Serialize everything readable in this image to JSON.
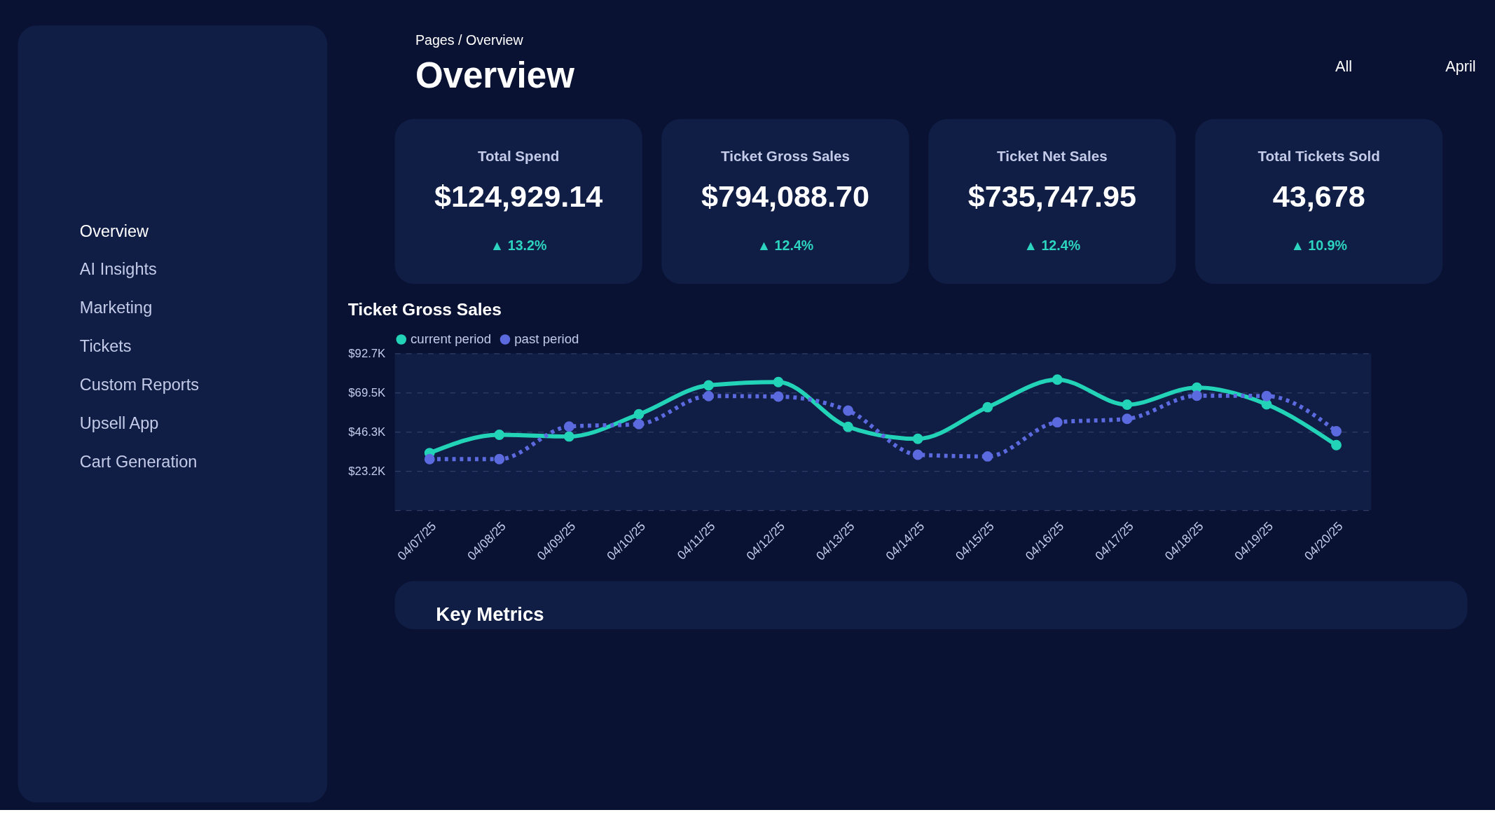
{
  "chart_data": [
    {
      "type": "other",
      "annotations": [
        "Overview",
        "AI Insights",
        "Marketing",
        "Tickets",
        "Custom Reports",
        "Upsell App",
        "Cart Generation"
      ]
    },
    {
      "type": "other",
      "title": "Overview",
      "annotations": [
        "Pages / Overview",
        "All",
        "April"
      ]
    },
    {
      "type": "other",
      "title": "Total Spend",
      "annotations": [
        "$124,929.14",
        "▲ 13.2%"
      ]
    },
    {
      "type": "other",
      "title": "Ticket Gross Sales",
      "annotations": [
        "$794,088.70",
        "▲ 12.4%"
      ]
    },
    {
      "type": "other",
      "title": "Ticket Net Sales",
      "annotations": [
        "$735,747.95",
        "▲ 12.4%"
      ]
    },
    {
      "type": "other",
      "title": "Total Tickets Sold",
      "annotations": [
        "43,678",
        "▲ 10.9%"
      ]
    },
    {
      "type": "line",
      "title": "Ticket Gross Sales",
      "categories": [
        "04/07/25",
        "04/08/25",
        "04/09/25",
        "04/10/25",
        "04/11/25",
        "04/12/25",
        "04/13/25",
        "04/14/25",
        "04/15/25",
        "04/16/25",
        "04/17/25",
        "04/18/25",
        "04/19/25",
        "04/20/25"
      ],
      "series": [
        {
          "name": "current period",
          "color": "#22d3b8",
          "line_style": "solid",
          "values": [
            33800,
            44600,
            43600,
            56700,
            73800,
            75800,
            49300,
            42200,
            60900,
            77200,
            62400,
            72500,
            62600,
            38500
          ]
        },
        {
          "name": "past period",
          "color": "#5c6ae0",
          "line_style": "dotted",
          "values": [
            30200,
            30200,
            49500,
            50900,
            67500,
            67200,
            58900,
            32800,
            31800,
            52000,
            54000,
            67700,
            67500,
            46700
          ]
        }
      ],
      "ylim": [
        0,
        92700
      ],
      "yticks": [
        {
          "value": 0,
          "label": null
        },
        {
          "value": 23200,
          "label": "$23.2K"
        },
        {
          "value": 46300,
          "label": "$46.3K"
        },
        {
          "value": 69500,
          "label": "$69.5K"
        },
        {
          "value": 92700,
          "label": "$92.7K"
        }
      ],
      "grid": "y",
      "legend": "top left",
      "marker": "circle"
    },
    {
      "type": "other",
      "title": "Key Metrics"
    }
  ]
}
